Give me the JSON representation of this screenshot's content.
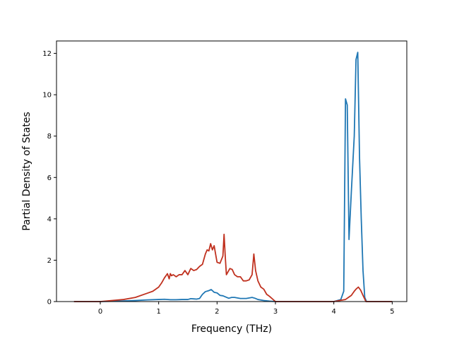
{
  "chart_data": {
    "type": "line",
    "title": "",
    "xlabel": "Frequency (THz)",
    "ylabel": "Partial Density of States",
    "xlim": [
      -0.75,
      5.25
    ],
    "ylim": [
      0,
      12.6
    ],
    "xticks": [
      0,
      1,
      2,
      3,
      4,
      5
    ],
    "xtick_labels": [
      "0",
      "1",
      "2",
      "3",
      "4",
      "5"
    ],
    "yticks": [
      0,
      2,
      4,
      6,
      8,
      10,
      12
    ],
    "ytick_labels": [
      "0",
      "2",
      "4",
      "6",
      "8",
      "10",
      "12"
    ],
    "grid": false,
    "legend": "none",
    "series": [
      {
        "color": "#1f77b4",
        "x": [
          -0.45,
          0.0,
          0.3,
          0.6,
          0.8,
          1.0,
          1.1,
          1.2,
          1.3,
          1.4,
          1.5,
          1.55,
          1.6,
          1.65,
          1.7,
          1.75,
          1.8,
          1.85,
          1.9,
          1.95,
          2.0,
          2.05,
          2.1,
          2.15,
          2.2,
          2.25,
          2.3,
          2.4,
          2.5,
          2.6,
          2.65,
          2.7,
          2.8,
          2.9,
          3.0,
          3.5,
          4.0,
          4.12,
          4.17,
          4.2,
          4.23,
          4.26,
          4.3,
          4.35,
          4.38,
          4.41,
          4.44,
          4.47,
          4.5,
          4.53,
          4.56,
          5.0
        ],
        "y": [
          0.0,
          0.0,
          0.02,
          0.05,
          0.08,
          0.1,
          0.11,
          0.09,
          0.09,
          0.1,
          0.1,
          0.14,
          0.13,
          0.12,
          0.15,
          0.35,
          0.48,
          0.52,
          0.58,
          0.45,
          0.42,
          0.3,
          0.28,
          0.22,
          0.16,
          0.2,
          0.2,
          0.15,
          0.15,
          0.2,
          0.16,
          0.1,
          0.05,
          0.02,
          0.0,
          0.0,
          0.0,
          0.1,
          0.5,
          9.8,
          9.5,
          3.0,
          5.3,
          8.0,
          11.7,
          12.05,
          7.0,
          4.0,
          1.5,
          0.2,
          0.0,
          0.0
        ]
      },
      {
        "color": "#c0311f",
        "x": [
          -0.45,
          0.0,
          0.2,
          0.4,
          0.6,
          0.8,
          0.9,
          1.0,
          1.05,
          1.1,
          1.15,
          1.18,
          1.2,
          1.22,
          1.25,
          1.3,
          1.35,
          1.4,
          1.45,
          1.5,
          1.55,
          1.6,
          1.65,
          1.7,
          1.75,
          1.8,
          1.83,
          1.86,
          1.89,
          1.92,
          1.95,
          2.0,
          2.05,
          2.1,
          2.12,
          2.14,
          2.16,
          2.18,
          2.22,
          2.26,
          2.3,
          2.35,
          2.4,
          2.45,
          2.5,
          2.55,
          2.6,
          2.63,
          2.66,
          2.7,
          2.75,
          2.8,
          2.85,
          2.9,
          3.0,
          3.5,
          4.0,
          4.1,
          4.2,
          4.25,
          4.3,
          4.35,
          4.38,
          4.42,
          4.46,
          4.5,
          4.55,
          5.0
        ],
        "y": [
          0.0,
          0.0,
          0.05,
          0.1,
          0.2,
          0.4,
          0.5,
          0.7,
          0.9,
          1.15,
          1.35,
          1.1,
          1.35,
          1.25,
          1.3,
          1.2,
          1.3,
          1.3,
          1.5,
          1.3,
          1.6,
          1.5,
          1.55,
          1.7,
          1.8,
          2.3,
          2.5,
          2.45,
          2.8,
          2.5,
          2.7,
          1.9,
          1.85,
          2.2,
          3.25,
          2.2,
          1.3,
          1.4,
          1.6,
          1.55,
          1.3,
          1.2,
          1.2,
          1.0,
          1.0,
          1.05,
          1.3,
          2.3,
          1.5,
          1.0,
          0.7,
          0.6,
          0.35,
          0.25,
          0.0,
          0.0,
          0.0,
          0.05,
          0.1,
          0.2,
          0.3,
          0.5,
          0.6,
          0.7,
          0.55,
          0.3,
          0.0,
          0.0
        ]
      }
    ]
  }
}
